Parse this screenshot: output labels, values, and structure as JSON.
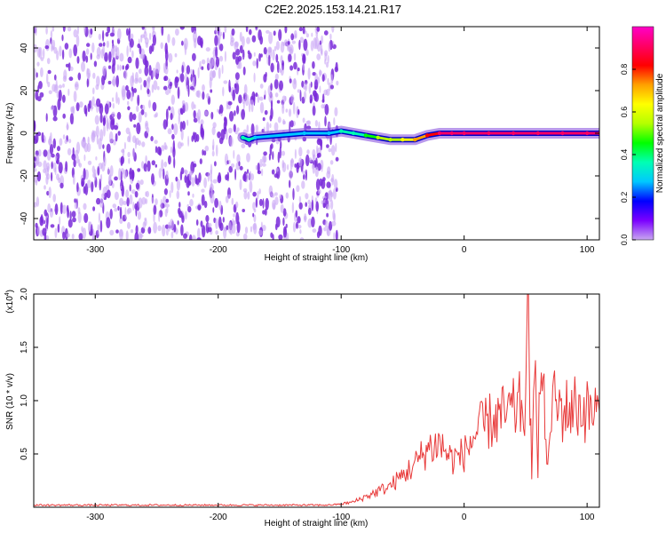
{
  "figure": {
    "title": "C2E2.2025.153.14.21.R17"
  },
  "colors": {
    "spectrum_purple": "#7a2bd9",
    "spectrum_light": "#c9a6f5",
    "snr_line": "#e83a3a",
    "colorbar": [
      "#c8a8f0",
      "#7b00ff",
      "#0000ff",
      "#00c8ff",
      "#00ffb4",
      "#00ff00",
      "#b4ff00",
      "#ffff00",
      "#ffa000",
      "#ff0000",
      "#ff0064",
      "#ff00c8"
    ]
  },
  "chart_data": [
    {
      "type": "heatmap",
      "xlabel": "Height of straight line (km)",
      "ylabel": "Frequency (Hz)",
      "xlim": [
        -350,
        110
      ],
      "ylim": [
        -50,
        50
      ],
      "xticks": [
        -300,
        -200,
        -100,
        0,
        100
      ],
      "yticks": [
        -40,
        -20,
        0,
        20,
        40
      ],
      "colorbar": {
        "label": "Normalized spectral amplitude",
        "range": [
          0,
          1
        ],
        "ticks": [
          "0.0",
          "0.2",
          "0.4",
          "0.6",
          "0.8"
        ]
      },
      "noise_region_x": [
        -350,
        -103
      ],
      "signal_trace": {
        "x": [
          -180,
          -175,
          -170,
          -130,
          -110,
          -100,
          -90,
          -80,
          -70,
          -60,
          -50,
          -40,
          -30,
          -20,
          -10,
          0,
          20,
          40,
          60,
          80,
          100,
          110
        ],
        "freq": [
          -2,
          -3,
          -2,
          0,
          0,
          1,
          0,
          -1,
          -2,
          -3,
          -3,
          -3,
          -1,
          0,
          0,
          0,
          0,
          0,
          0,
          0,
          0,
          0
        ],
        "amplitude": [
          0.4,
          0.35,
          0.3,
          0.25,
          0.3,
          0.35,
          0.4,
          0.45,
          0.5,
          0.55,
          0.6,
          0.7,
          0.8,
          0.9,
          0.95,
          0.95,
          0.95,
          0.95,
          0.95,
          0.95,
          0.95,
          0.95
        ]
      }
    },
    {
      "type": "line",
      "xlabel": "Height of straight line (km)",
      "ylabel": "SNR (10 * v/v)",
      "scale_note": "(x10",
      "scale_exp": "4",
      "scale_close": ")",
      "xlim": [
        -350,
        110
      ],
      "ylim": [
        0,
        2.0
      ],
      "xticks": [
        -300,
        -200,
        -100,
        0,
        100
      ],
      "yticks": [
        "0.5",
        "1.0",
        "1.5",
        "2.0"
      ],
      "series": [
        {
          "x": [
            -350,
            -300,
            -250,
            -200,
            -150,
            -110,
            -100,
            -90,
            -80,
            -70,
            -60,
            -50,
            -40,
            -30,
            -20,
            -10,
            0,
            10,
            20,
            30,
            40,
            45,
            50,
            52,
            55,
            58,
            60,
            62,
            65,
            68,
            70,
            72,
            75,
            80,
            90,
            100,
            110
          ],
          "y": [
            0.02,
            0.02,
            0.02,
            0.02,
            0.02,
            0.02,
            0.03,
            0.05,
            0.1,
            0.15,
            0.2,
            0.3,
            0.4,
            0.55,
            0.6,
            0.45,
            0.5,
            0.7,
            0.8,
            0.85,
            0.9,
            0.95,
            0.9,
            2.0,
            0.2,
            1.7,
            0.4,
            1.3,
            0.95,
            0.3,
            0.9,
            1.0,
            0.95,
            0.9,
            0.95,
            0.9,
            0.9
          ]
        }
      ]
    }
  ]
}
